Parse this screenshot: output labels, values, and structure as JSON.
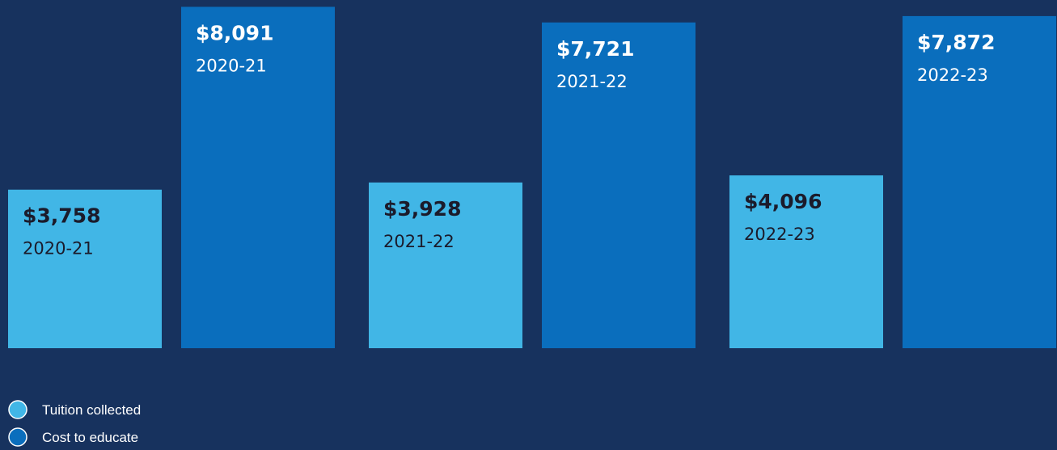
{
  "chart_data": {
    "type": "bar",
    "categories": [
      "2020-21",
      "2021-22",
      "2022-23"
    ],
    "series": [
      {
        "name": "Tuition collected",
        "color": "#41b6e6",
        "values": [
          3758,
          3928,
          4096
        ],
        "value_labels": [
          "$3,758",
          "$3,928",
          "$4,096"
        ]
      },
      {
        "name": "Cost to educate",
        "color": "#0a6ebd",
        "values": [
          8091,
          7721,
          7872
        ],
        "value_labels": [
          "$8,091",
          "$7,721",
          "$7,872"
        ]
      }
    ],
    "ylim": [
      0,
      8100
    ]
  }
}
